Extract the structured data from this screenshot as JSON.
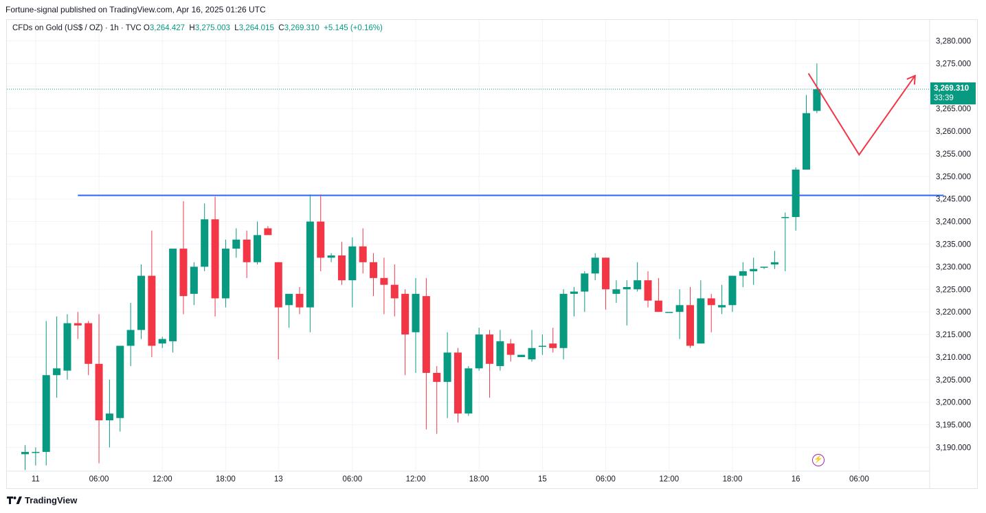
{
  "header": {
    "publisher_line": "Fortune-signal published on TradingView.com, Apr 16, 2025 01:26 UTC"
  },
  "symbol": {
    "name": "CFDs on Gold (US$ / OZ)",
    "interval": "1h",
    "source": "TVC",
    "open_label": "O",
    "open": "3,264.427",
    "high_label": "H",
    "high": "3,275.003",
    "low_label": "L",
    "low": "3,264.015",
    "close_label": "C",
    "close": "3,269.310",
    "change": "+5.145 (+0.16%)"
  },
  "last_price": {
    "price": "3,269.310",
    "countdown": "33:39"
  },
  "footer": {
    "brand": "TradingView"
  },
  "colors": {
    "up": "#089981",
    "down": "#f23645",
    "resistance": "#2962ff",
    "projection": "#f23645",
    "grid": "#f0f3fa"
  },
  "chart_data": {
    "type": "candlestick",
    "ylim": [
      3185,
      3283
    ],
    "y_ticks": [
      "3,190.000",
      "3,195.000",
      "3,200.000",
      "3,205.000",
      "3,210.000",
      "3,215.000",
      "3,220.000",
      "3,225.000",
      "3,230.000",
      "3,235.000",
      "3,240.000",
      "3,245.000",
      "3,250.000",
      "3,255.000",
      "3,260.000",
      "3,265.000",
      "3,270.000",
      "3,275.000",
      "3,280.000"
    ],
    "y_tick_values": [
      3190,
      3195,
      3200,
      3205,
      3210,
      3215,
      3220,
      3225,
      3230,
      3235,
      3240,
      3245,
      3250,
      3255,
      3260,
      3265,
      3270,
      3275,
      3280
    ],
    "x_ticks": [
      {
        "label": "11",
        "bar": 1
      },
      {
        "label": "06:00",
        "bar": 7
      },
      {
        "label": "12:00",
        "bar": 13
      },
      {
        "label": "18:00",
        "bar": 19
      },
      {
        "label": "13",
        "bar": 24
      },
      {
        "label": "06:00",
        "bar": 31
      },
      {
        "label": "12:00",
        "bar": 37
      },
      {
        "label": "18:00",
        "bar": 43
      },
      {
        "label": "15",
        "bar": 49
      },
      {
        "label": "06:00",
        "bar": 55
      },
      {
        "label": "12:00",
        "bar": 61
      },
      {
        "label": "18:00",
        "bar": 67
      },
      {
        "label": "16",
        "bar": 73
      },
      {
        "label": "06:00",
        "bar": 79
      }
    ],
    "resistance_level": 3245.8,
    "resistance_bar_range": [
      5,
      87
    ],
    "projection_path": [
      {
        "bar": 74.2,
        "price": 3272.8
      },
      {
        "bar": 79,
        "price": 3254.8
      },
      {
        "bar": 84.3,
        "price": 3272.3
      }
    ],
    "candles": [
      [
        3188.5,
        3190.5,
        3185,
        3189
      ],
      [
        3189,
        3190,
        3186,
        3189
      ],
      [
        3189,
        3218,
        3186,
        3206
      ],
      [
        3206,
        3219,
        3201,
        3207.5
      ],
      [
        3207,
        3219.5,
        3205,
        3217.5
      ],
      [
        3217.5,
        3220,
        3214,
        3217
      ],
      [
        3217.5,
        3218,
        3206,
        3208.5
      ],
      [
        3208.5,
        3219.5,
        3186.5,
        3196
      ],
      [
        3196,
        3205,
        3190,
        3197.5
      ],
      [
        3196.5,
        3212.5,
        3193.5,
        3212.5
      ],
      [
        3212.5,
        3222,
        3208,
        3216
      ],
      [
        3216,
        3230.5,
        3214,
        3228
      ],
      [
        3228,
        3238,
        3210,
        3212.5
      ],
      [
        3213,
        3214.5,
        3212,
        3214
      ],
      [
        3213.5,
        3234,
        3211,
        3234
      ],
      [
        3234,
        3244.5,
        3219.5,
        3223.5
      ],
      [
        3224,
        3231,
        3221.5,
        3230
      ],
      [
        3230,
        3244,
        3229,
        3240.5
      ],
      [
        3240.5,
        3245.5,
        3219,
        3223
      ],
      [
        3223,
        3236,
        3221,
        3234
      ],
      [
        3234,
        3238.5,
        3232,
        3236
      ],
      [
        3236,
        3238,
        3227.5,
        3231
      ],
      [
        3231,
        3240,
        3230.5,
        3237
      ],
      [
        3238.5,
        3239,
        3237,
        3237
      ],
      [
        3231,
        3231,
        3209.5,
        3221
      ],
      [
        3221.5,
        3224,
        3216.5,
        3224
      ],
      [
        3224,
        3225.5,
        3219.5,
        3221
      ],
      [
        3221,
        3246,
        3215.5,
        3240
      ],
      [
        3240,
        3246,
        3229,
        3232
      ],
      [
        3232,
        3233,
        3231,
        3232.5
      ],
      [
        3232.5,
        3235.5,
        3226,
        3227
      ],
      [
        3227,
        3236.5,
        3221,
        3234.5
      ],
      [
        3234.5,
        3238.5,
        3228.5,
        3231
      ],
      [
        3231,
        3233,
        3223.5,
        3227.5
      ],
      [
        3227.5,
        3232,
        3219.5,
        3226
      ],
      [
        3226,
        3230.5,
        3219,
        3223
      ],
      [
        3224,
        3225,
        3206,
        3215
      ],
      [
        3215.5,
        3227.5,
        3206.5,
        3224
      ],
      [
        3223.5,
        3227.5,
        3194,
        3206.5
      ],
      [
        3206.5,
        3208,
        3193,
        3204.5
      ],
      [
        3204.5,
        3215.5,
        3196.5,
        3211
      ],
      [
        3211,
        3212,
        3195.5,
        3197.5
      ],
      [
        3197.5,
        3208,
        3197,
        3207.5
      ],
      [
        3207.5,
        3216.5,
        3207,
        3215
      ],
      [
        3215,
        3216,
        3201,
        3208.5
      ],
      [
        3208,
        3216,
        3207,
        3213.5
      ],
      [
        3213,
        3214,
        3209,
        3210.5
      ],
      [
        3210,
        3210.5,
        3210,
        3210.5
      ],
      [
        3209.5,
        3216,
        3209,
        3212
      ],
      [
        3212.5,
        3215,
        3210.5,
        3212.5
      ],
      [
        3213,
        3216.5,
        3211,
        3212
      ],
      [
        3212,
        3225,
        3209.5,
        3224
      ],
      [
        3224,
        3225.5,
        3219,
        3224.5
      ],
      [
        3224.5,
        3229,
        3220,
        3228.5
      ],
      [
        3228.5,
        3233,
        3227,
        3232
      ],
      [
        3232,
        3232,
        3220.5,
        3225
      ],
      [
        3224,
        3227,
        3222,
        3225
      ],
      [
        3225,
        3227,
        3217,
        3225.5
      ],
      [
        3225,
        3231,
        3224.5,
        3227
      ],
      [
        3227,
        3229,
        3221,
        3222.5
      ],
      [
        3222.5,
        3227.5,
        3220,
        3220
      ],
      [
        3220,
        3220,
        3220,
        3220
      ],
      [
        3220,
        3225,
        3214,
        3221.5
      ],
      [
        3221.5,
        3225.5,
        3212,
        3212.5
      ],
      [
        3213,
        3227,
        3213,
        3223
      ],
      [
        3223,
        3224,
        3215.5,
        3221.5
      ],
      [
        3221,
        3226,
        3219.5,
        3221.5
      ],
      [
        3221.5,
        3228,
        3220,
        3228
      ],
      [
        3228,
        3231,
        3225.5,
        3229
      ],
      [
        3229,
        3232,
        3226,
        3229.5
      ],
      [
        3230,
        3230,
        3229.5,
        3230
      ],
      [
        3230.5,
        3233.5,
        3229.5,
        3231
      ],
      [
        3241,
        3242,
        3229,
        3241
      ],
      [
        3241,
        3252,
        3238,
        3251.5
      ],
      [
        3251.5,
        3268,
        3251.5,
        3264
      ],
      [
        3264.5,
        3275,
        3264,
        3269.3
      ]
    ]
  }
}
